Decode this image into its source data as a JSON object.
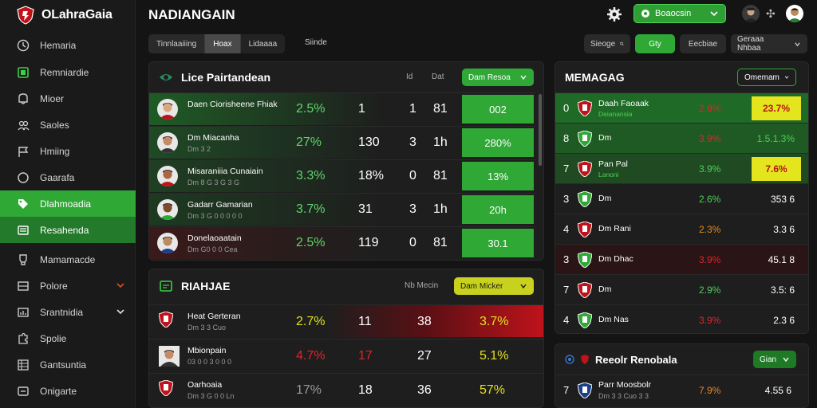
{
  "brand": {
    "name": "OLahraGaia"
  },
  "sidebar": {
    "items": [
      {
        "label": "Hemaria",
        "icon": "clock-icon"
      },
      {
        "label": "Remniardie",
        "icon": "calendar-icon"
      },
      {
        "label": "Mioer",
        "icon": "bell-icon"
      },
      {
        "label": "Saoles",
        "icon": "people-icon"
      },
      {
        "label": "Hmiing",
        "icon": "flag-icon"
      },
      {
        "label": "Gaarafa",
        "icon": "circle-icon"
      },
      {
        "label": "Dlahmoadia",
        "icon": "tag-icon"
      },
      {
        "label": "Resahenda",
        "icon": "list-icon"
      },
      {
        "label": "Mamamacde",
        "icon": "trophy-icon"
      },
      {
        "label": "Polore",
        "icon": "grid-icon"
      },
      {
        "label": "Srantnidia",
        "icon": "chart-icon"
      },
      {
        "label": "Spolie",
        "icon": "puzzle-icon"
      },
      {
        "label": "Gantsuntia",
        "icon": "table-icon"
      },
      {
        "label": "Onigarte",
        "icon": "link-icon"
      }
    ]
  },
  "topbar": {
    "title": "NADIANGAIN",
    "select_label": "Boaocsin"
  },
  "filters": {
    "seg": [
      "Tinnlaaiiing",
      "Hoax",
      "Lidaaaa"
    ],
    "link": "Siinde",
    "right": [
      "Sieoge",
      "Gty",
      "Eecbiae",
      "Geraaa Nhbaa"
    ]
  },
  "panel_left_top": {
    "title": "Lice Pairtandean",
    "col1": "Id",
    "col2": "Dat",
    "btn": "Dam Resoa",
    "rows": [
      {
        "name": "Daen Ciorisheene Fhiak",
        "sub": "",
        "pct": "2.5%",
        "a": "1",
        "b": "1",
        "c": "81",
        "box": "002"
      },
      {
        "name": "Dm Miacanha",
        "sub": "Dm 3 2",
        "pct": "27%",
        "a": "130",
        "b": "3",
        "c": "1h",
        "box": "280%"
      },
      {
        "name": "Misaraniiia Cunaiain",
        "sub": "Dm 8 G 3 G 3 G",
        "pct": "3.3%",
        "a": "18%",
        "b": "0",
        "c": "81",
        "box": "13%"
      },
      {
        "name": "Gadarr Gamarian",
        "sub": "Dm 3 G 0 0 0 0 0",
        "pct": "3.7%",
        "a": "31",
        "b": "3",
        "c": "1h",
        "box": "20h"
      },
      {
        "name": "Donelaoaatain",
        "sub": "Dm G0 0 0 Cea",
        "pct": "2.5%",
        "a": "119",
        "b": "0",
        "c": "81",
        "box": "30.1"
      }
    ]
  },
  "panel_left_bottom": {
    "title": "RIAHJAE",
    "col": "Nb Mecin",
    "btn": "Dam Micker",
    "rows": [
      {
        "name": "Heat Gerteran",
        "sub": "Dm 3 3 Cuo",
        "pct": "2.7%",
        "pct_color": "#e3e01d",
        "a": "11",
        "b": "38",
        "box": "3.7%"
      },
      {
        "name": "Mbionpain",
        "sub": "03 0 0 3 0 0 0",
        "pct": "4.7%",
        "pct_color": "#e0242a",
        "a": "17",
        "b": "27",
        "box": "5.1%"
      },
      {
        "name": "Oarhoaia",
        "sub": "Dm 3 G 0 0 Ln",
        "pct": "17%",
        "pct_color": "#9a9a9a",
        "a": "18",
        "b": "36",
        "box": "57%"
      }
    ]
  },
  "panel_right_top": {
    "title": "MEMAGAG",
    "btn": "Omemam",
    "rows": [
      {
        "n": "0",
        "name": "Daah Faoaak",
        "sub": "Deianansia",
        "pct": "2.9%",
        "val": "23.7%",
        "yellow": true
      },
      {
        "n": "8",
        "name": "Dm",
        "sub": "",
        "pct": "3.9%",
        "val": "1.5.1.3%",
        "yellow": false
      },
      {
        "n": "7",
        "name": "Pan Pal",
        "sub": "Lanoni",
        "pct": "3.9%",
        "val": "7.6%",
        "yellow": true
      },
      {
        "n": "3",
        "name": "Dm",
        "sub": "",
        "pct": "2.6%",
        "val": "353 6",
        "yellow": false
      },
      {
        "n": "4",
        "name": "Dm Rani",
        "sub": "",
        "pct": "2.3%",
        "val": "3.3 6",
        "yellow": false
      },
      {
        "n": "3",
        "name": "Dm Dhac",
        "sub": "",
        "pct": "3.9%",
        "val": "45.1 8",
        "yellow": false
      },
      {
        "n": "7",
        "name": "Dm",
        "sub": "",
        "pct": "2.9%",
        "val": "3.5: 6",
        "yellow": false
      },
      {
        "n": "4",
        "name": "Dm Nas",
        "sub": "",
        "pct": "3.9%",
        "val": "2.3 6",
        "yellow": false
      }
    ]
  },
  "panel_right_bottom": {
    "title": "Reeolr Renobala",
    "btn": "Gian",
    "rows": [
      {
        "n": "7",
        "name": "Parr Moosbolr",
        "sub": "Dm 3 3 Cuo 3 3",
        "pct": "7.9%",
        "val": "4.55 6"
      }
    ]
  },
  "colors": {
    "green": "#2fa836",
    "dark_green": "#237a2a",
    "yellow": "#e4e51c",
    "red": "#c0121b"
  }
}
